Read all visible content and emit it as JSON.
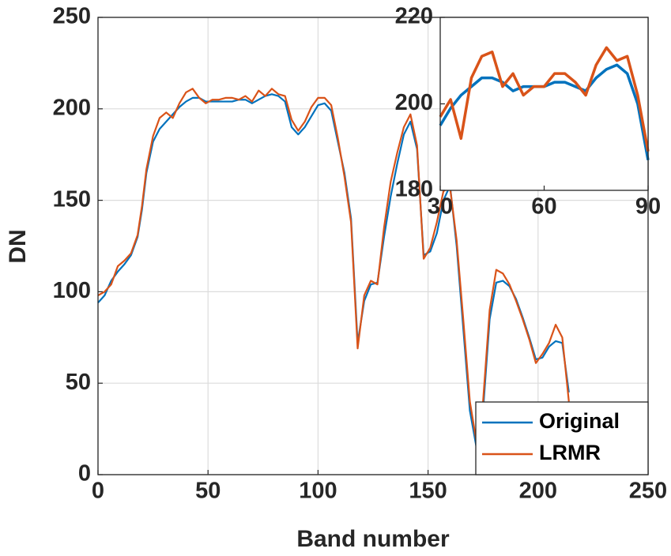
{
  "chart_data": [
    {
      "type": "line",
      "xlabel": "Band number",
      "ylabel": "DN",
      "x": [
        0,
        3,
        6,
        9,
        12,
        15,
        18,
        20,
        22,
        25,
        28,
        31,
        34,
        37,
        40,
        43,
        46,
        49,
        52,
        55,
        58,
        61,
        64,
        67,
        70,
        73,
        76,
        79,
        82,
        85,
        88,
        91,
        94,
        97,
        100,
        103,
        106,
        109,
        112,
        115,
        118,
        121,
        124,
        127,
        130,
        133,
        136,
        139,
        142,
        145,
        148,
        151,
        154,
        157,
        160,
        163,
        166,
        169,
        172,
        175,
        178,
        181,
        184,
        187,
        190,
        193,
        196,
        199,
        202,
        205,
        208,
        211,
        214
      ],
      "series": [
        {
          "name": "Original",
          "color": "#0072bd",
          "values": [
            94,
            98,
            106,
            111,
            115,
            120,
            130,
            145,
            165,
            182,
            189,
            193,
            197,
            201,
            204,
            206,
            206,
            204,
            204,
            204,
            204,
            204,
            205,
            205,
            203,
            205,
            207,
            208,
            207,
            204,
            190,
            186,
            190,
            196,
            202,
            203,
            199,
            182,
            165,
            140,
            72,
            95,
            104,
            105,
            130,
            152,
            170,
            186,
            193,
            178,
            120,
            122,
            132,
            150,
            158,
            125,
            80,
            35,
            15,
            35,
            85,
            105,
            106,
            103,
            96,
            86,
            75,
            63,
            64,
            70,
            73,
            72,
            45
          ]
        },
        {
          "name": "LRMR",
          "color": "#d95319",
          "values": [
            98,
            100,
            104,
            114,
            117,
            121,
            131,
            147,
            167,
            185,
            195,
            198,
            195,
            203,
            209,
            211,
            206,
            203,
            205,
            205,
            206,
            206,
            205,
            207,
            204,
            210,
            207,
            211,
            208,
            207,
            194,
            188,
            193,
            201,
            206,
            206,
            202,
            184,
            163,
            138,
            69,
            98,
            106,
            104,
            135,
            160,
            176,
            190,
            197,
            180,
            118,
            124,
            138,
            155,
            157,
            128,
            85,
            40,
            18,
            40,
            90,
            112,
            110,
            104,
            95,
            85,
            74,
            61,
            66,
            72,
            82,
            75,
            40
          ]
        }
      ],
      "xlim": [
        0,
        250
      ],
      "ylim": [
        0,
        250
      ],
      "xticks": [
        0,
        50,
        100,
        150,
        200,
        250
      ],
      "yticks": [
        0,
        50,
        100,
        150,
        200,
        250
      ],
      "grid": true,
      "legend": "lower right"
    },
    {
      "type": "line",
      "x": [
        30,
        33,
        36,
        39,
        42,
        45,
        48,
        51,
        54,
        57,
        60,
        63,
        66,
        69,
        72,
        75,
        78,
        81,
        84,
        87,
        90
      ],
      "series": [
        {
          "color": "#0072bd",
          "values": [
            195,
            199,
            202,
            204,
            206,
            206,
            205,
            203,
            204,
            204,
            204,
            205,
            205,
            204,
            203,
            206,
            208,
            209,
            207,
            200,
            187
          ]
        },
        {
          "color": "#d95319",
          "values": [
            197,
            201,
            192,
            206,
            211,
            212,
            204,
            207,
            202,
            204,
            204,
            207,
            207,
            205,
            202,
            209,
            213,
            210,
            211,
            202,
            189
          ]
        }
      ],
      "xlim": [
        30,
        90
      ],
      "ylim": [
        180,
        220
      ],
      "xticks": [
        30,
        60,
        90
      ],
      "yticks": [
        180,
        200,
        220
      ],
      "grid": false
    }
  ]
}
